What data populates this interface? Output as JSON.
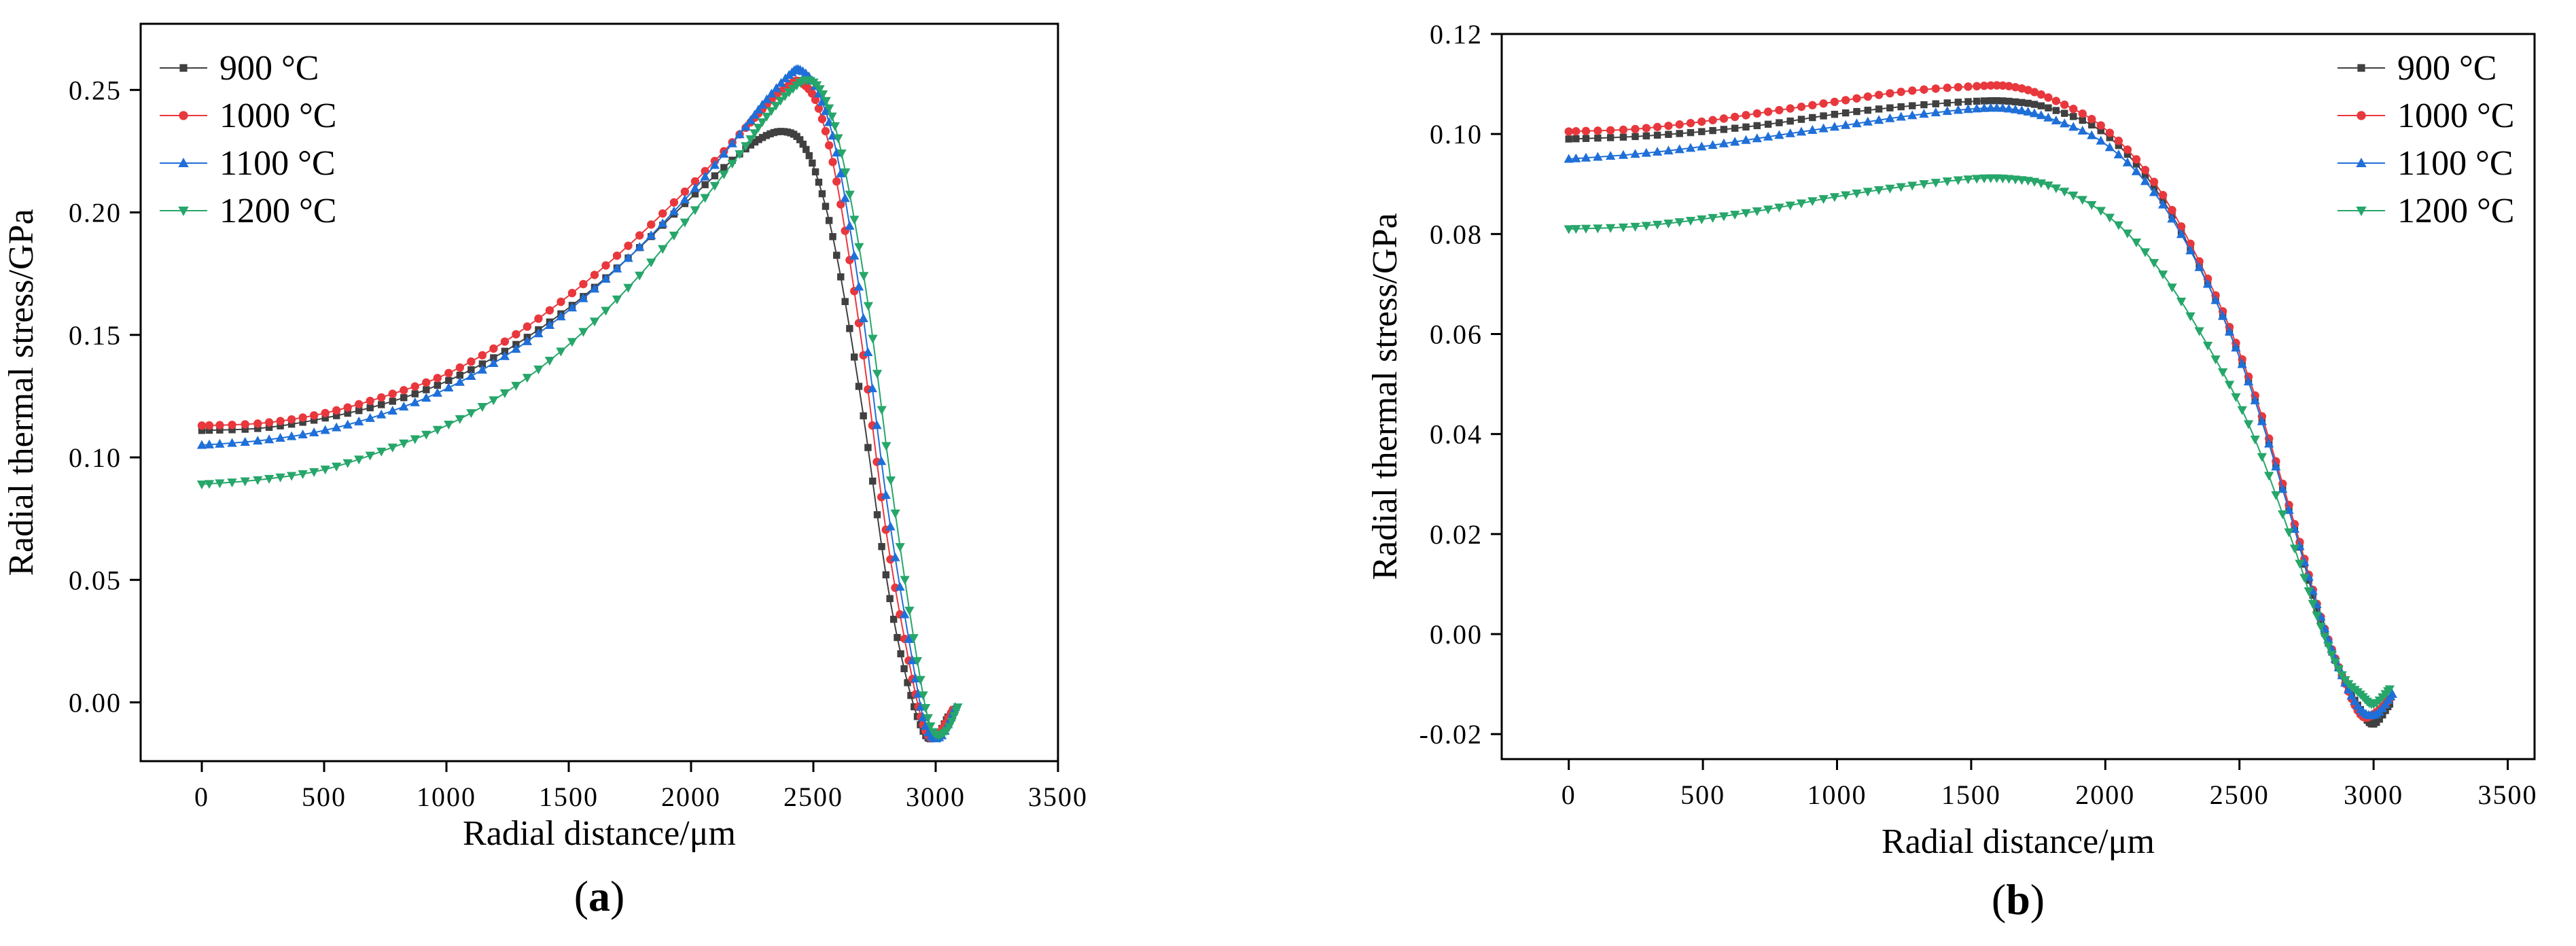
{
  "chart_data": [
    {
      "type": "scatter",
      "panel_label": "(a)",
      "panel_letter": "a",
      "xlabel": "Radial distance/μm",
      "ylabel": "Radial thermal stress/GPa",
      "xlim": [
        -250,
        3500
      ],
      "ylim": [
        -0.024,
        0.277
      ],
      "xticks": [
        0,
        500,
        1000,
        1500,
        2000,
        2500,
        3000,
        3500
      ],
      "xtick_labels": [
        "0",
        "500",
        "1000",
        "1500",
        "2000",
        "2500",
        "3000",
        "3500"
      ],
      "yticks": [
        0.0,
        0.05,
        0.1,
        0.15,
        0.2,
        0.25
      ],
      "ytick_labels": [
        "0.00",
        "0.05",
        "0.10",
        "0.15",
        "0.20",
        "0.25"
      ],
      "legend_position": "top-left",
      "grid": false,
      "series": [
        {
          "name": "900 °C",
          "color": "#404040",
          "marker": "square",
          "points": [
            [
              0,
              0.111
            ],
            [
              250,
              0.112
            ],
            [
              500,
              0.116
            ],
            [
              750,
              0.122
            ],
            [
              1000,
              0.131
            ],
            [
              1250,
              0.144
            ],
            [
              1500,
              0.161
            ],
            [
              1750,
              0.182
            ],
            [
              2000,
              0.206
            ],
            [
              2200,
              0.224
            ],
            [
              2300,
              0.231
            ],
            [
              2380,
              0.233
            ],
            [
              2450,
              0.229
            ],
            [
              2520,
              0.213
            ],
            [
              2600,
              0.18
            ],
            [
              2700,
              0.12
            ],
            [
              2800,
              0.05
            ],
            [
              2880,
              0.01
            ],
            [
              2950,
              -0.012
            ],
            [
              3000,
              -0.014
            ],
            [
              3050,
              -0.006
            ]
          ]
        },
        {
          "name": "1000 °C",
          "color": "#e8383d",
          "marker": "circle",
          "points": [
            [
              0,
              0.113
            ],
            [
              250,
              0.114
            ],
            [
              500,
              0.118
            ],
            [
              750,
              0.125
            ],
            [
              1000,
              0.134
            ],
            [
              1250,
              0.148
            ],
            [
              1500,
              0.166
            ],
            [
              1750,
              0.187
            ],
            [
              2000,
              0.211
            ],
            [
              2200,
              0.232
            ],
            [
              2300,
              0.243
            ],
            [
              2400,
              0.252
            ],
            [
              2450,
              0.253
            ],
            [
              2520,
              0.243
            ],
            [
              2600,
              0.21
            ],
            [
              2700,
              0.145
            ],
            [
              2800,
              0.068
            ],
            [
              2900,
              0.012
            ],
            [
              2960,
              -0.012
            ],
            [
              3010,
              -0.013
            ],
            [
              3070,
              -0.003
            ]
          ]
        },
        {
          "name": "1100 °C",
          "color": "#1f6fd8",
          "marker": "triangle-up",
          "points": [
            [
              0,
              0.105
            ],
            [
              250,
              0.107
            ],
            [
              500,
              0.111
            ],
            [
              750,
              0.118
            ],
            [
              1000,
              0.128
            ],
            [
              1250,
              0.142
            ],
            [
              1500,
              0.16
            ],
            [
              1750,
              0.182
            ],
            [
              2000,
              0.208
            ],
            [
              2200,
              0.232
            ],
            [
              2300,
              0.245
            ],
            [
              2400,
              0.256
            ],
            [
              2450,
              0.258
            ],
            [
              2520,
              0.249
            ],
            [
              2600,
              0.222
            ],
            [
              2700,
              0.16
            ],
            [
              2800,
              0.082
            ],
            [
              2900,
              0.02
            ],
            [
              2960,
              -0.01
            ],
            [
              3020,
              -0.014
            ],
            [
              3080,
              -0.002
            ]
          ]
        },
        {
          "name": "1200 °C",
          "color": "#26a66a",
          "marker": "triangle-down",
          "points": [
            [
              0,
              0.089
            ],
            [
              250,
              0.091
            ],
            [
              500,
              0.095
            ],
            [
              750,
              0.103
            ],
            [
              1000,
              0.113
            ],
            [
              1250,
              0.127
            ],
            [
              1500,
              0.146
            ],
            [
              1750,
              0.17
            ],
            [
              2000,
              0.199
            ],
            [
              2200,
              0.224
            ],
            [
              2300,
              0.238
            ],
            [
              2400,
              0.249
            ],
            [
              2480,
              0.254
            ],
            [
              2550,
              0.246
            ],
            [
              2620,
              0.222
            ],
            [
              2720,
              0.165
            ],
            [
              2820,
              0.088
            ],
            [
              2920,
              0.02
            ],
            [
              2980,
              -0.01
            ],
            [
              3040,
              -0.012
            ],
            [
              3090,
              -0.002
            ]
          ]
        }
      ]
    },
    {
      "type": "scatter",
      "panel_label": "(b)",
      "panel_letter": "b",
      "xlabel": "Radial distance/μm",
      "ylabel": "Radial thermal stress/GPa",
      "xlim": [
        -250,
        3600
      ],
      "ylim": [
        -0.025,
        0.12
      ],
      "xticks": [
        0,
        500,
        1000,
        1500,
        2000,
        2500,
        3000,
        3500
      ],
      "xtick_labels": [
        "0",
        "500",
        "1000",
        "1500",
        "2000",
        "2500",
        "3000",
        "3500"
      ],
      "yticks": [
        -0.02,
        0.0,
        0.02,
        0.04,
        0.06,
        0.08,
        0.1,
        0.12
      ],
      "ytick_labels": [
        "-0.02",
        "0.00",
        "0.02",
        "0.04",
        "0.06",
        "0.08",
        "0.10",
        "0.12"
      ],
      "legend_position": "top-right",
      "grid": false,
      "series": [
        {
          "name": "900 °C",
          "color": "#404040",
          "marker": "square",
          "points": [
            [
              0,
              0.099
            ],
            [
              250,
              0.0995
            ],
            [
              500,
              0.1005
            ],
            [
              750,
              0.102
            ],
            [
              1000,
              0.104
            ],
            [
              1250,
              0.1055
            ],
            [
              1500,
              0.1065
            ],
            [
              1650,
              0.1065
            ],
            [
              1800,
              0.105
            ],
            [
              2000,
              0.1
            ],
            [
              2200,
              0.088
            ],
            [
              2400,
              0.068
            ],
            [
              2550,
              0.048
            ],
            [
              2700,
              0.022
            ],
            [
              2800,
              0.003
            ],
            [
              2880,
              -0.008
            ],
            [
              2950,
              -0.015
            ],
            [
              3000,
              -0.018
            ],
            [
              3060,
              -0.014
            ]
          ]
        },
        {
          "name": "1000 °C",
          "color": "#e8383d",
          "marker": "circle",
          "points": [
            [
              0,
              0.1005
            ],
            [
              250,
              0.101
            ],
            [
              500,
              0.1025
            ],
            [
              750,
              0.1045
            ],
            [
              1000,
              0.1065
            ],
            [
              1250,
              0.1085
            ],
            [
              1500,
              0.1095
            ],
            [
              1650,
              0.1095
            ],
            [
              1800,
              0.107
            ],
            [
              2000,
              0.101
            ],
            [
              2200,
              0.089
            ],
            [
              2400,
              0.069
            ],
            [
              2550,
              0.049
            ],
            [
              2700,
              0.023
            ],
            [
              2800,
              0.004
            ],
            [
              2880,
              -0.008
            ],
            [
              2950,
              -0.016
            ],
            [
              3000,
              -0.016
            ],
            [
              3060,
              -0.013
            ]
          ]
        },
        {
          "name": "1100 °C",
          "color": "#1f6fd8",
          "marker": "triangle-up",
          "points": [
            [
              0,
              0.095
            ],
            [
              250,
              0.096
            ],
            [
              500,
              0.0975
            ],
            [
              750,
              0.0995
            ],
            [
              1000,
              0.1015
            ],
            [
              1250,
              0.1035
            ],
            [
              1500,
              0.105
            ],
            [
              1650,
              0.105
            ],
            [
              1800,
              0.103
            ],
            [
              2000,
              0.098
            ],
            [
              2200,
              0.087
            ],
            [
              2400,
              0.068
            ],
            [
              2550,
              0.048
            ],
            [
              2700,
              0.022
            ],
            [
              2800,
              0.004
            ],
            [
              2880,
              -0.008
            ],
            [
              2950,
              -0.015
            ],
            [
              3010,
              -0.016
            ],
            [
              3070,
              -0.012
            ]
          ]
        },
        {
          "name": "1200 °C",
          "color": "#26a66a",
          "marker": "triangle-down",
          "points": [
            [
              0,
              0.081
            ],
            [
              250,
              0.0815
            ],
            [
              500,
              0.083
            ],
            [
              750,
              0.085
            ],
            [
              1000,
              0.0875
            ],
            [
              1250,
              0.0895
            ],
            [
              1500,
              0.091
            ],
            [
              1650,
              0.091
            ],
            [
              1800,
              0.0895
            ],
            [
              2000,
              0.084
            ],
            [
              2200,
              0.073
            ],
            [
              2400,
              0.056
            ],
            [
              2550,
              0.04
            ],
            [
              2700,
              0.018
            ],
            [
              2800,
              0.002
            ],
            [
              2880,
              -0.008
            ],
            [
              2950,
              -0.012
            ],
            [
              3000,
              -0.014
            ],
            [
              3060,
              -0.011
            ]
          ]
        }
      ]
    }
  ]
}
